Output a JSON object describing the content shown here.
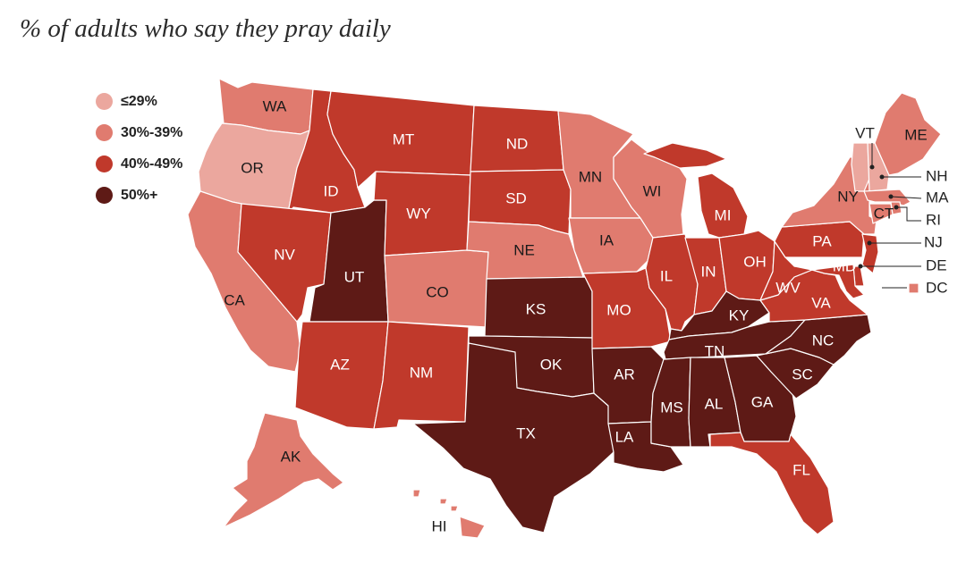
{
  "title": "% of adults who say they pray daily",
  "colors": {
    "b1": "#eba79e",
    "b2": "#e07b6f",
    "b3": "#c0392b",
    "b4": "#5e1a16",
    "label_light": "#1a1a1a",
    "label_dark": "#ffffff"
  },
  "legend": [
    {
      "key": "b1",
      "label": "≤29%"
    },
    {
      "key": "b2",
      "label": "30%-39%"
    },
    {
      "key": "b3",
      "label": "40%-49%"
    },
    {
      "key": "b4",
      "label": "50%+"
    }
  ],
  "states": [
    {
      "abbr": "WA",
      "bin": "b2"
    },
    {
      "abbr": "OR",
      "bin": "b1"
    },
    {
      "abbr": "CA",
      "bin": "b2"
    },
    {
      "abbr": "ID",
      "bin": "b3"
    },
    {
      "abbr": "NV",
      "bin": "b3"
    },
    {
      "abbr": "UT",
      "bin": "b4"
    },
    {
      "abbr": "AZ",
      "bin": "b3"
    },
    {
      "abbr": "MT",
      "bin": "b3"
    },
    {
      "abbr": "WY",
      "bin": "b3"
    },
    {
      "abbr": "CO",
      "bin": "b2"
    },
    {
      "abbr": "NM",
      "bin": "b3"
    },
    {
      "abbr": "ND",
      "bin": "b3"
    },
    {
      "abbr": "SD",
      "bin": "b3"
    },
    {
      "abbr": "NE",
      "bin": "b2"
    },
    {
      "abbr": "KS",
      "bin": "b4"
    },
    {
      "abbr": "OK",
      "bin": "b4"
    },
    {
      "abbr": "TX",
      "bin": "b4"
    },
    {
      "abbr": "MN",
      "bin": "b2"
    },
    {
      "abbr": "IA",
      "bin": "b2"
    },
    {
      "abbr": "MO",
      "bin": "b3"
    },
    {
      "abbr": "AR",
      "bin": "b4"
    },
    {
      "abbr": "LA",
      "bin": "b4"
    },
    {
      "abbr": "WI",
      "bin": "b2"
    },
    {
      "abbr": "IL",
      "bin": "b3"
    },
    {
      "abbr": "MI",
      "bin": "b3"
    },
    {
      "abbr": "IN",
      "bin": "b3"
    },
    {
      "abbr": "OH",
      "bin": "b3"
    },
    {
      "abbr": "KY",
      "bin": "b4"
    },
    {
      "abbr": "TN",
      "bin": "b4"
    },
    {
      "abbr": "MS",
      "bin": "b4"
    },
    {
      "abbr": "AL",
      "bin": "b4"
    },
    {
      "abbr": "GA",
      "bin": "b4"
    },
    {
      "abbr": "FL",
      "bin": "b3"
    },
    {
      "abbr": "SC",
      "bin": "b4"
    },
    {
      "abbr": "NC",
      "bin": "b4"
    },
    {
      "abbr": "VA",
      "bin": "b3"
    },
    {
      "abbr": "WV",
      "bin": "b3"
    },
    {
      "abbr": "PA",
      "bin": "b3"
    },
    {
      "abbr": "NY",
      "bin": "b2"
    },
    {
      "abbr": "VT",
      "bin": "b1"
    },
    {
      "abbr": "NH",
      "bin": "b1"
    },
    {
      "abbr": "ME",
      "bin": "b2"
    },
    {
      "abbr": "MA",
      "bin": "b2"
    },
    {
      "abbr": "RI",
      "bin": "b2"
    },
    {
      "abbr": "CT",
      "bin": "b2"
    },
    {
      "abbr": "NJ",
      "bin": "b3"
    },
    {
      "abbr": "DE",
      "bin": "b3"
    },
    {
      "abbr": "MD",
      "bin": "b3"
    },
    {
      "abbr": "DC",
      "bin": "b2"
    },
    {
      "abbr": "AK",
      "bin": "b2"
    },
    {
      "abbr": "HI",
      "bin": "b2"
    }
  ]
}
